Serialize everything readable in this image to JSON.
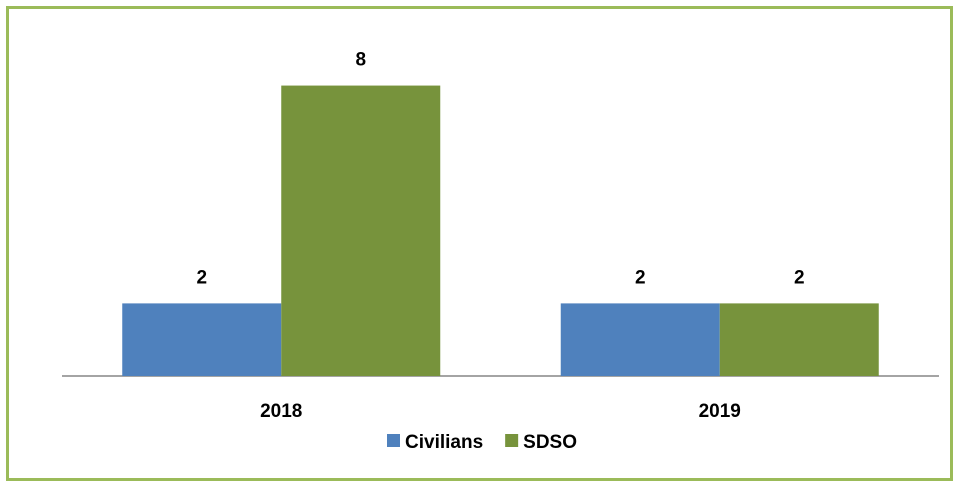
{
  "chart_data": {
    "type": "bar",
    "categories": [
      "2018",
      "2019"
    ],
    "series": [
      {
        "name": "Civilians",
        "values": [
          2,
          2
        ],
        "color": "#4f81bd"
      },
      {
        "name": "SDSO",
        "values": [
          8,
          2
        ],
        "color": "#77933c"
      }
    ],
    "ylim": [
      0,
      9.2
    ],
    "grid": false,
    "legend": "bottom-center",
    "data_labels": true
  },
  "frame_color": "#9bbb59"
}
